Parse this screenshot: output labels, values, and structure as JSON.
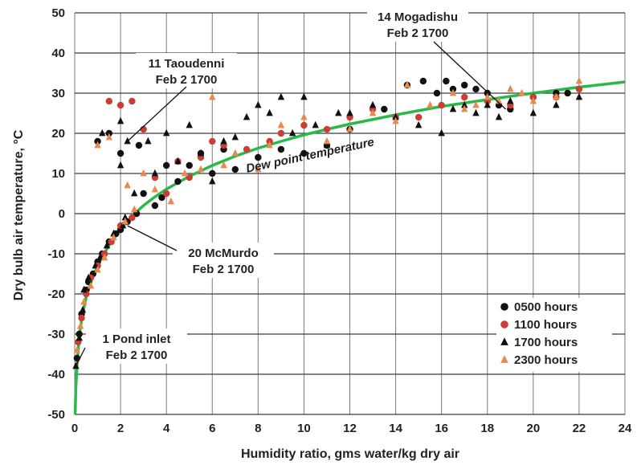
{
  "chart_data": {
    "type": "scatter",
    "xlabel": "Humidity ratio, gms water/kg dry air",
    "ylabel": "Dry bulb air temperature, °C",
    "xlim": [
      0,
      24
    ],
    "ylim": [
      -50,
      50
    ],
    "xticks": [
      0,
      2,
      4,
      6,
      8,
      10,
      12,
      14,
      16,
      18,
      20,
      22,
      24
    ],
    "yticks": [
      -50,
      -40,
      -30,
      -20,
      -10,
      0,
      10,
      20,
      30,
      40,
      50
    ],
    "grid": "horizontal and vertical",
    "legend_position": "bottom-right",
    "colors": {
      "h0500": "#111111",
      "h1100": "#cc3d33",
      "h1700": "#111111",
      "h2300": "#e8894d",
      "curve": "#2ab84a"
    },
    "curve": {
      "name": "Dew point temperature",
      "x": [
        0.02,
        0.05,
        0.1,
        0.2,
        0.3,
        0.5,
        0.8,
        1.2,
        1.6,
        2.0,
        2.5,
        3.0,
        3.5,
        4.0,
        5.0,
        6.0,
        7.0,
        8.0,
        9.0,
        10.0,
        11.0,
        12.0,
        14.0,
        16.0,
        18.0,
        20.0,
        22.0,
        24.0
      ],
      "y": [
        -50.0,
        -43.5,
        -37.7,
        -30.5,
        -26.3,
        -20.8,
        -15.5,
        -10.7,
        -7.0,
        -3.9,
        -0.6,
        2.0,
        4.2,
        6.1,
        9.3,
        12.0,
        14.3,
        16.3,
        18.0,
        19.6,
        21.0,
        22.3,
        24.6,
        26.7,
        28.4,
        30.0,
        31.5,
        32.8
      ]
    },
    "series": [
      {
        "name": "0500 hours",
        "marker": "circle",
        "color": "#111111",
        "points": [
          [
            0.1,
            -36
          ],
          [
            0.2,
            -30
          ],
          [
            0.3,
            -25
          ],
          [
            0.5,
            -19
          ],
          [
            0.6,
            -17
          ],
          [
            0.8,
            -15
          ],
          [
            1.0,
            -12
          ],
          [
            1.2,
            -10
          ],
          [
            1.5,
            -7
          ],
          [
            1.8,
            -5
          ],
          [
            2.0,
            -4
          ],
          [
            2.3,
            -2
          ],
          [
            2.7,
            0
          ],
          [
            1.0,
            18
          ],
          [
            1.5,
            20
          ],
          [
            2.0,
            15
          ],
          [
            2.8,
            17
          ],
          [
            3.0,
            5
          ],
          [
            3.5,
            2
          ],
          [
            3.8,
            4
          ],
          [
            4.0,
            12
          ],
          [
            4.5,
            8
          ],
          [
            5.0,
            12
          ],
          [
            5.5,
            15
          ],
          [
            6.0,
            10
          ],
          [
            6.5,
            16
          ],
          [
            7.0,
            11
          ],
          [
            8.0,
            14
          ],
          [
            9.0,
            16
          ],
          [
            10.0,
            15
          ],
          [
            11.0,
            17
          ],
          [
            12.0,
            21
          ],
          [
            13.5,
            26
          ],
          [
            14.5,
            32
          ],
          [
            15.2,
            33
          ],
          [
            15.8,
            30
          ],
          [
            16.2,
            33
          ],
          [
            16.5,
            31
          ],
          [
            17.0,
            32
          ],
          [
            17.5,
            31
          ],
          [
            18.0,
            30
          ],
          [
            18.5,
            27
          ],
          [
            19.0,
            26
          ],
          [
            20.0,
            29
          ],
          [
            21.0,
            30
          ],
          [
            21.5,
            30
          ]
        ]
      },
      {
        "name": "1100 hours",
        "marker": "circle",
        "color": "#cc3d33",
        "points": [
          [
            0.15,
            -32
          ],
          [
            0.3,
            -26
          ],
          [
            0.5,
            -20
          ],
          [
            0.7,
            -16
          ],
          [
            1.0,
            -13
          ],
          [
            1.3,
            -10
          ],
          [
            1.6,
            -7
          ],
          [
            2.0,
            -3
          ],
          [
            2.5,
            -1
          ],
          [
            1.5,
            28
          ],
          [
            2.0,
            27
          ],
          [
            2.5,
            28
          ],
          [
            3.0,
            21
          ],
          [
            3.5,
            9
          ],
          [
            4.0,
            5
          ],
          [
            4.5,
            13
          ],
          [
            5.0,
            9
          ],
          [
            5.5,
            14
          ],
          [
            6.0,
            18
          ],
          [
            6.5,
            17
          ],
          [
            7.5,
            16
          ],
          [
            8.5,
            18
          ],
          [
            9.0,
            20
          ],
          [
            10.0,
            22
          ],
          [
            11.0,
            21
          ],
          [
            12.0,
            24
          ],
          [
            13.0,
            26
          ],
          [
            14.0,
            24
          ],
          [
            15.0,
            24
          ],
          [
            16.0,
            27
          ],
          [
            17.0,
            29
          ],
          [
            18.0,
            28
          ],
          [
            19.0,
            27
          ],
          [
            20.0,
            29
          ],
          [
            21.0,
            29
          ],
          [
            22.0,
            31
          ]
        ]
      },
      {
        "name": "1700 hours",
        "marker": "triangle",
        "color": "#111111",
        "points": [
          [
            0.05,
            -38
          ],
          [
            0.2,
            -31
          ],
          [
            0.35,
            -24
          ],
          [
            0.4,
            -19
          ],
          [
            0.6,
            -16
          ],
          [
            0.9,
            -13
          ],
          [
            1.1,
            -11
          ],
          [
            1.4,
            -8
          ],
          [
            1.7,
            -5
          ],
          [
            2.1,
            -3
          ],
          [
            2.2,
            -1
          ],
          [
            1.2,
            20
          ],
          [
            2.0,
            23
          ],
          [
            2.3,
            18
          ],
          [
            2.0,
            12
          ],
          [
            2.6,
            5
          ],
          [
            3.2,
            18
          ],
          [
            3.5,
            10
          ],
          [
            4.0,
            20
          ],
          [
            4.5,
            13
          ],
          [
            5.0,
            22
          ],
          [
            5.5,
            15
          ],
          [
            6.0,
            8
          ],
          [
            6.5,
            18
          ],
          [
            7.0,
            19
          ],
          [
            7.5,
            24
          ],
          [
            8.0,
            27
          ],
          [
            8.5,
            25
          ],
          [
            9.0,
            29
          ],
          [
            9.5,
            20
          ],
          [
            10.0,
            29
          ],
          [
            10.5,
            22
          ],
          [
            11.0,
            17
          ],
          [
            11.5,
            25
          ],
          [
            12.0,
            25
          ],
          [
            13.0,
            27
          ],
          [
            14.0,
            24
          ],
          [
            15.0,
            22
          ],
          [
            16.0,
            20
          ],
          [
            16.5,
            26
          ],
          [
            17.0,
            27
          ],
          [
            17.5,
            25
          ],
          [
            18.0,
            27
          ],
          [
            18.5,
            24
          ],
          [
            19.0,
            28
          ],
          [
            20.0,
            25
          ],
          [
            21.0,
            27
          ],
          [
            22.0,
            29
          ]
        ]
      },
      {
        "name": "2300 hours",
        "marker": "triangle",
        "color": "#e8894d",
        "points": [
          [
            0.1,
            -34
          ],
          [
            0.25,
            -28
          ],
          [
            0.4,
            -22
          ],
          [
            0.7,
            -18
          ],
          [
            1.0,
            -14
          ],
          [
            1.3,
            -11
          ],
          [
            1.7,
            -6
          ],
          [
            2.2,
            -2
          ],
          [
            2.6,
            1
          ],
          [
            1.0,
            17
          ],
          [
            1.5,
            19
          ],
          [
            2.3,
            7
          ],
          [
            3.0,
            10
          ],
          [
            3.5,
            6
          ],
          [
            4.2,
            3
          ],
          [
            4.8,
            10
          ],
          [
            5.5,
            11
          ],
          [
            6.0,
            29
          ],
          [
            6.5,
            12
          ],
          [
            7.0,
            15
          ],
          [
            8.0,
            11
          ],
          [
            8.5,
            17
          ],
          [
            9.0,
            22
          ],
          [
            10.0,
            24
          ],
          [
            11.0,
            18
          ],
          [
            12.0,
            21
          ],
          [
            13.0,
            25
          ],
          [
            14.0,
            23
          ],
          [
            14.5,
            32
          ],
          [
            15.5,
            27
          ],
          [
            16.5,
            30
          ],
          [
            17.0,
            26
          ],
          [
            17.5,
            27
          ],
          [
            18.0,
            29
          ],
          [
            18.5,
            28
          ],
          [
            19.0,
            31
          ],
          [
            19.5,
            30
          ],
          [
            20.0,
            28
          ],
          [
            21.0,
            29
          ],
          [
            22.0,
            33
          ]
        ]
      }
    ],
    "annotations": [
      {
        "line1": "14 Mogadishu",
        "line2": "Feb 2 1700",
        "x": 18.8,
        "y": 26
      },
      {
        "line1": "11 Taoudenni",
        "line2": "Feb 2 1700",
        "x": 2.3,
        "y": 18
      },
      {
        "line1": "20 McMurdo",
        "line2": "Feb 2 1700",
        "x": 2.3,
        "y": -3
      },
      {
        "line1": "1 Pond inlet",
        "line2": "Feb 2 1700",
        "x": 0.05,
        "y": -38
      }
    ],
    "curve_label": "Dew point temperature"
  }
}
